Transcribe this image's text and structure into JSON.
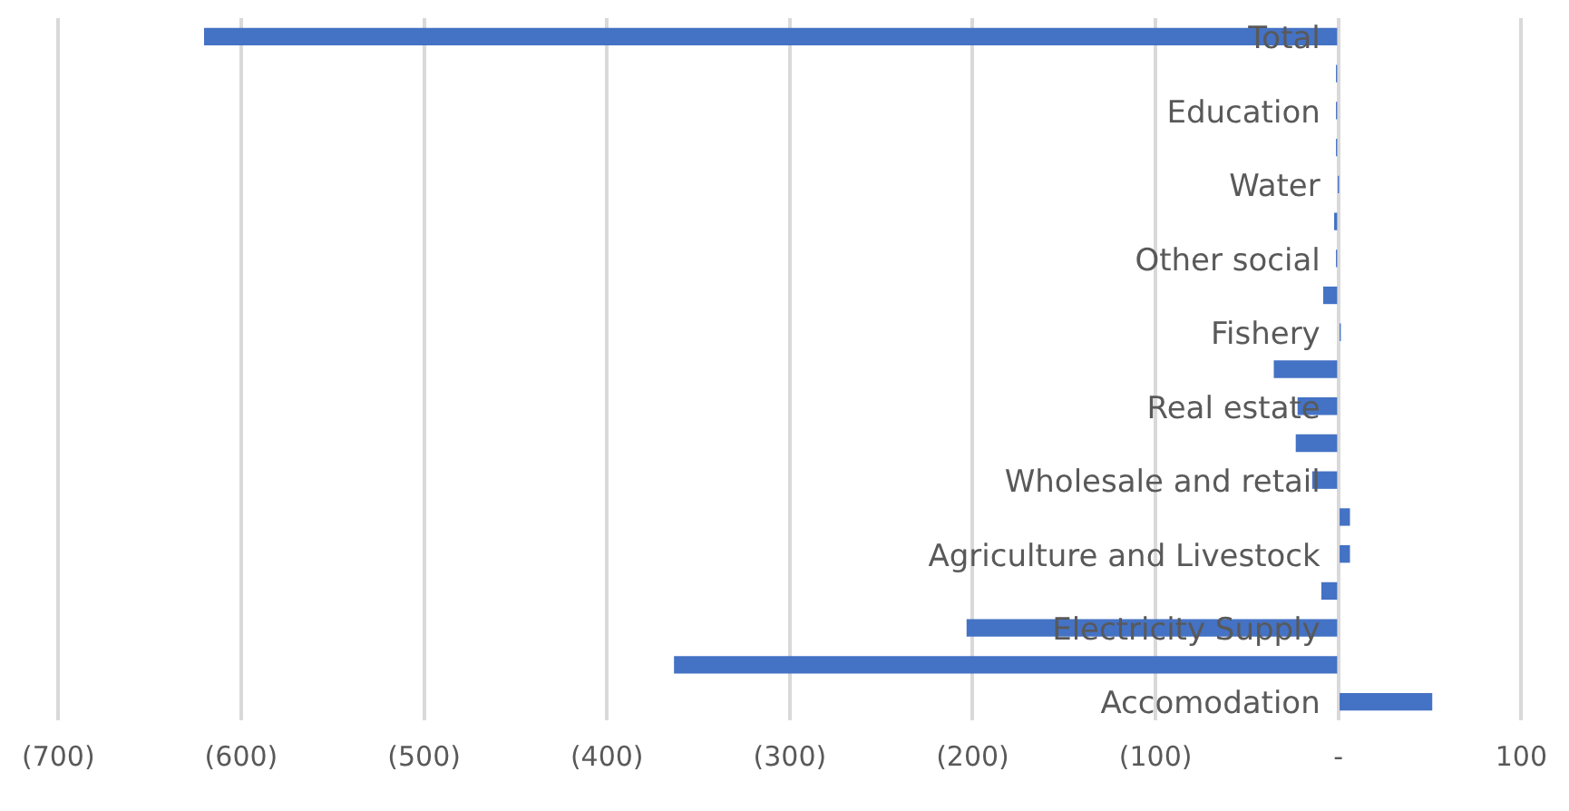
{
  "chart_data": {
    "type": "bar",
    "orientation": "horizontal",
    "categories": [
      "Total",
      null,
      "Education",
      null,
      "Water",
      null,
      "Other social",
      null,
      "Fishery",
      null,
      "Real estate",
      null,
      "Wholesale and retail",
      null,
      "Agriculture and Livestock",
      null,
      "Electricity Supply",
      null,
      "Accomodation"
    ],
    "values": [
      -620,
      -1,
      -1,
      -1,
      0,
      -2,
      -1,
      -8,
      1,
      -35,
      -22,
      -23,
      -14,
      6,
      6,
      -9,
      -203,
      -363,
      51
    ],
    "color": "#4472c4",
    "xlim": [
      -700,
      100
    ],
    "xticks": [
      {
        "value": -700,
        "label": "(700)"
      },
      {
        "value": -600,
        "label": "(600)"
      },
      {
        "value": -500,
        "label": "(500)"
      },
      {
        "value": -400,
        "label": "(400)"
      },
      {
        "value": -300,
        "label": "(300)"
      },
      {
        "value": -200,
        "label": "(200)"
      },
      {
        "value": -100,
        "label": "(100)"
      },
      {
        "value": 0,
        "label": "-"
      },
      100
    ],
    "grid": "x",
    "legend": false
  }
}
